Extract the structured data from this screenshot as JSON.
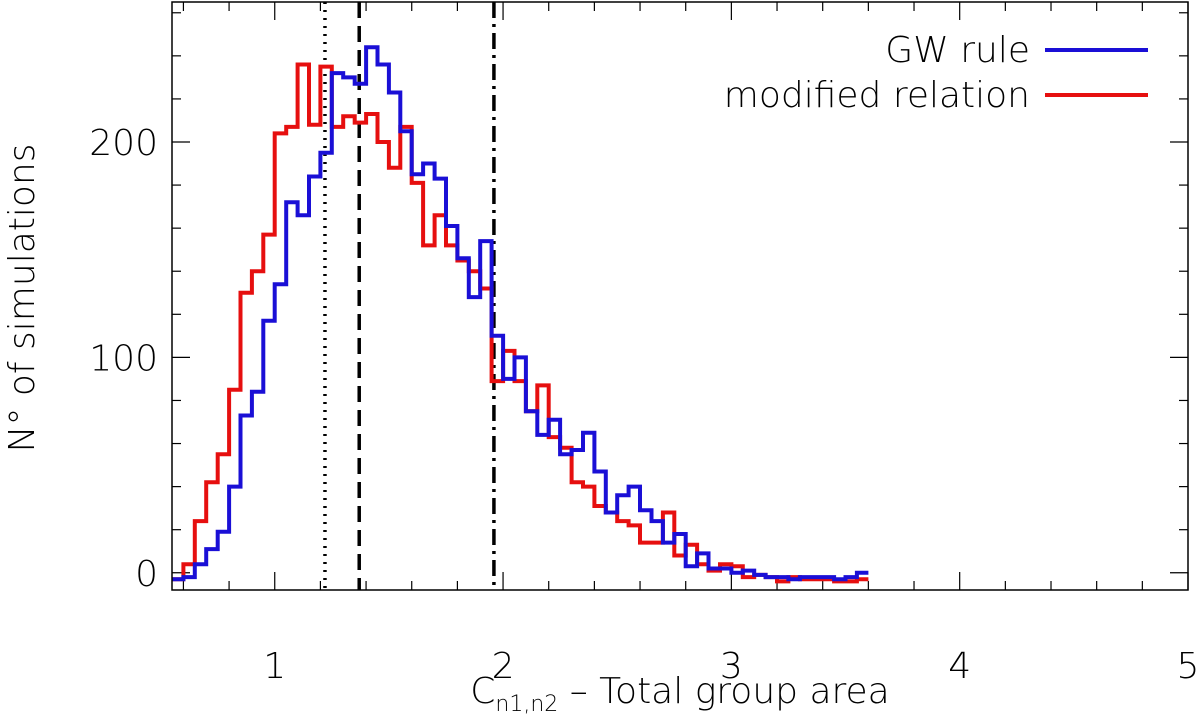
{
  "chart_data": {
    "type": "histogram",
    "xlabel_main": "C",
    "xlabel_sub": "n1,n2",
    "xlabel_rest": " – Total group area",
    "ylabel": "N° of simulations",
    "xlim": [
      0.55,
      5.0
    ],
    "ylim": [
      -8,
      265
    ],
    "xticks": [
      1,
      2,
      3,
      4,
      5
    ],
    "yticks": [
      0,
      100,
      200
    ],
    "bin_start": 0.55,
    "bin_width": 0.05,
    "legend_position": "top-right",
    "series": [
      {
        "name": "GW rule",
        "color": "#1a0fd6",
        "values": [
          -3,
          -2,
          4,
          11,
          19,
          40,
          73,
          84,
          117,
          134,
          172,
          166,
          184,
          195,
          232,
          230,
          227,
          244,
          236,
          223,
          205,
          185,
          190,
          183,
          161,
          146,
          128,
          154,
          110,
          90,
          100,
          75,
          64,
          71,
          55,
          57,
          65,
          47,
          28,
          36,
          40,
          29,
          24,
          14,
          18,
          3,
          9,
          2,
          2,
          0,
          1,
          -1,
          -2,
          -2,
          -3,
          -2,
          -2,
          -2,
          -3,
          -2,
          0
        ]
      },
      {
        "name": "modified relation",
        "color": "#e60f0f",
        "values": [
          -3,
          4,
          24,
          42,
          55,
          85,
          130,
          140,
          157,
          204,
          207,
          236,
          208,
          235,
          207,
          212,
          209,
          213,
          200,
          188,
          207,
          181,
          152,
          166,
          152,
          145,
          140,
          132,
          89,
          103,
          89,
          75,
          87,
          63,
          58,
          42,
          40,
          31,
          28,
          24,
          22,
          14,
          14,
          28,
          8,
          13,
          4,
          1,
          4,
          3,
          -2,
          -1,
          -2,
          -4,
          -2,
          -3,
          -3,
          -3,
          -4,
          -4,
          -3
        ]
      }
    ],
    "reference_lines": [
      {
        "x": 1.22,
        "style": "dotted"
      },
      {
        "x": 1.37,
        "style": "dashed"
      },
      {
        "x": 1.96,
        "style": "dash-dot"
      }
    ]
  }
}
